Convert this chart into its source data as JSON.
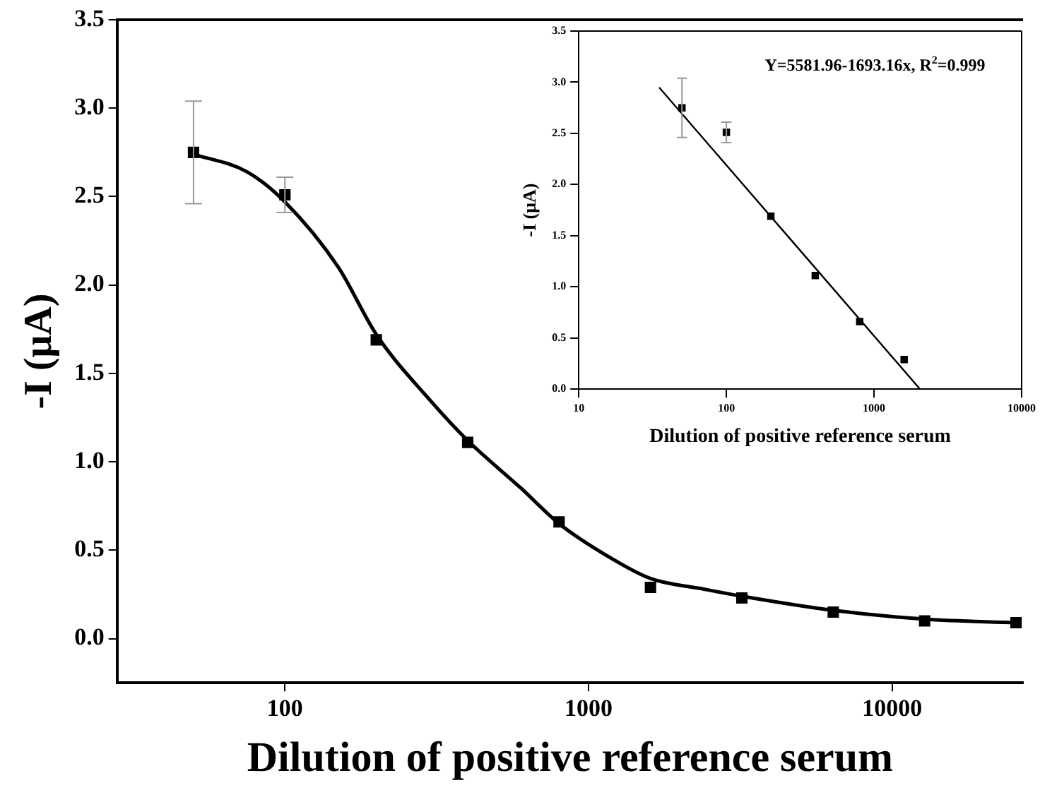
{
  "chart_data": [
    {
      "type": "scatter",
      "xlabel": "Dilution of positive reference serum",
      "ylabel": "-I (μA)",
      "log": "x",
      "xlim": [
        28,
        27000
      ],
      "xticks": [
        100,
        1000,
        10000
      ],
      "ylim": [
        -0.25,
        3.5
      ],
      "yticks": [
        {
          "value": 0,
          "label": "0.0"
        },
        0.5,
        {
          "value": 1,
          "label": "1.0"
        },
        1.5,
        {
          "value": 2,
          "label": "2.0"
        },
        2.5,
        {
          "value": 3,
          "label": "3.0"
        },
        3.5
      ],
      "grid": false,
      "legend": false,
      "series": [
        {
          "type": "line",
          "color": "#000000",
          "marker": "none",
          "x": [
            50,
            75,
            100,
            150,
            200,
            300,
            400,
            600,
            800,
            1200,
            1600,
            2400,
            3200,
            6400,
            12800,
            25600
          ],
          "values": [
            2.74,
            2.64,
            2.47,
            2.1,
            1.72,
            1.35,
            1.12,
            0.85,
            0.65,
            0.45,
            0.34,
            0.28,
            0.24,
            0.16,
            0.11,
            0.09
          ]
        },
        {
          "type": "scatter",
          "color": "#000000",
          "marker": "square",
          "x": [
            50,
            100,
            200,
            400,
            800,
            1600,
            3200,
            6400,
            12800,
            25600
          ],
          "values": [
            2.75,
            2.51,
            1.69,
            1.11,
            0.66,
            0.29,
            0.23,
            0.15,
            0.1,
            0.09
          ],
          "errors": [
            0.29,
            0.1,
            null,
            null,
            null,
            null,
            null,
            null,
            null,
            null
          ]
        }
      ]
    },
    {
      "type": "scatter",
      "xlabel": "Dilution of positive reference serum",
      "ylabel": "-I (μA)",
      "log": "x",
      "xlim": [
        10,
        10000
      ],
      "xticks": [
        10,
        100,
        1000,
        10000
      ],
      "ylim": [
        0,
        3.5
      ],
      "yticks": [
        {
          "value": 0,
          "label": "0.0"
        },
        0.5,
        {
          "value": 1,
          "label": "1.0"
        },
        1.5,
        {
          "value": 2,
          "label": "2.0"
        },
        2.5,
        {
          "value": 3,
          "label": "3.0"
        },
        3.5
      ],
      "grid": false,
      "legend": false,
      "annotations": [
        "Y=5581.96-1693.16x, R$^{2}$=0.999"
      ],
      "series": [
        {
          "type": "line",
          "color": "#000000",
          "marker": "none",
          "x": [
            35,
            2050
          ],
          "values": [
            2.95,
            0
          ]
        },
        {
          "type": "scatter",
          "color": "#000000",
          "marker": "square",
          "x": [
            50,
            100,
            200,
            400,
            800,
            1600
          ],
          "values": [
            2.75,
            2.51,
            1.69,
            1.11,
            0.66,
            0.29
          ],
          "errors": [
            0.29,
            0.1,
            null,
            null,
            null,
            null
          ]
        }
      ]
    }
  ]
}
